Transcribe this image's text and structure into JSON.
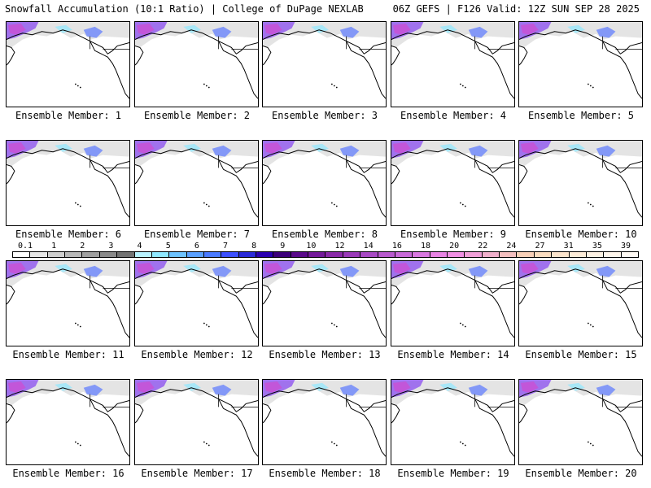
{
  "header": {
    "title": "Snowfall Accumulation (10:1 Ratio) | College of DuPage NEXLAB",
    "run_info": "06Z GEFS | F126 Valid: 12Z SUN SEP 28 2025"
  },
  "legend": {
    "labels": [
      "0.1",
      "1",
      "2",
      "3",
      "4",
      "5",
      "6",
      "7",
      "8",
      "9",
      "10",
      "12",
      "14",
      "16",
      "18",
      "20",
      "22",
      "24",
      "27",
      "31",
      "35",
      "39"
    ],
    "colors": [
      "#ffffff",
      "#e6e6e6",
      "#cfcfcf",
      "#b8b8b8",
      "#a0a0a0",
      "#8a8a8a",
      "#737373",
      "#b8f2ff",
      "#8fe8ff",
      "#6ec3ff",
      "#5aa0ff",
      "#4a7aff",
      "#3c50ff",
      "#2a2ad8",
      "#2a00b0",
      "#3c007a",
      "#5a0a8a",
      "#741a9a",
      "#8a2aa8",
      "#9a3ab8",
      "#a84ac4",
      "#b85ace",
      "#c86ad8",
      "#d878e0",
      "#e884e4",
      "#f090e4",
      "#f0a0d8",
      "#f0b0cc",
      "#f4c0c0",
      "#f8d0b8",
      "#fadcc0",
      "#fce4cc",
      "#fdecd8",
      "#fef2e4",
      "#fff6ec",
      "#fffaf4"
    ]
  },
  "members": [
    {
      "label": "Ensemble Member: 1"
    },
    {
      "label": "Ensemble Member: 2"
    },
    {
      "label": "Ensemble Member: 3"
    },
    {
      "label": "Ensemble Member: 4"
    },
    {
      "label": "Ensemble Member: 5"
    },
    {
      "label": "Ensemble Member: 6"
    },
    {
      "label": "Ensemble Member: 7"
    },
    {
      "label": "Ensemble Member: 8"
    },
    {
      "label": "Ensemble Member: 9"
    },
    {
      "label": "Ensemble Member: 10"
    },
    {
      "label": "Ensemble Member: 11"
    },
    {
      "label": "Ensemble Member: 12"
    },
    {
      "label": "Ensemble Member: 13"
    },
    {
      "label": "Ensemble Member: 14"
    },
    {
      "label": "Ensemble Member: 15"
    },
    {
      "label": "Ensemble Member: 16"
    },
    {
      "label": "Ensemble Member: 17"
    },
    {
      "label": "Ensemble Member: 18"
    },
    {
      "label": "Ensemble Member: 19"
    },
    {
      "label": "Ensemble Member: 20"
    }
  ]
}
